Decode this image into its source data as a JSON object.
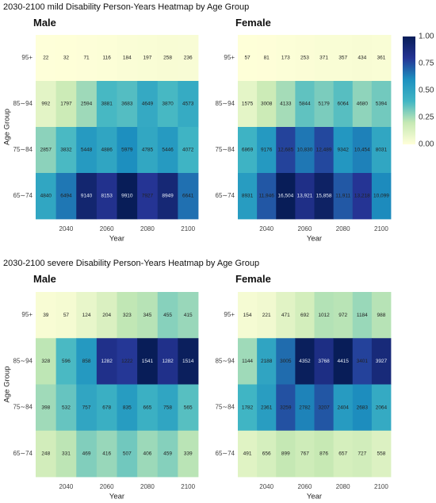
{
  "chart_data": [
    {
      "type": "heatmap",
      "title": "2030-2100 mild Disability Person-Years Heatmap by Age Group",
      "legend": {
        "placement": "right",
        "ticks": [
          "1.00",
          "0.75",
          "0.50",
          "0.25",
          "0.00"
        ],
        "colors": [
          "#ffffd9",
          "#c7e9b4",
          "#41b6c4",
          "#1d91c0",
          "#253494",
          "#081d58"
        ]
      },
      "panels": [
        {
          "title": "Male",
          "xlabel": "Year",
          "ylabel": "Age Group",
          "x_ticks": [
            "2040",
            "2060",
            "2080",
            "2100"
          ],
          "rows": [
            "95+",
            "85∼94",
            "75∼84",
            "65∼74"
          ],
          "cell_labels": [
            [
              "22",
              "32",
              "71",
              "116",
              "184",
              "197",
              "258",
              "236"
            ],
            [
              "992",
              "1797",
              "2594",
              "3881",
              "3683",
              "4649",
              "3870",
              "4573"
            ],
            [
              "2857",
              "3832",
              "5448",
              "4886",
              "5979",
              "4785",
              "5446",
              "4072"
            ],
            [
              "4840",
              "6494",
              "9140",
              "8153",
              "9910",
              "7927",
              "8949",
              "6641"
            ]
          ]
        },
        {
          "title": "Female",
          "xlabel": "Year",
          "ylabel": "",
          "x_ticks": [
            "2040",
            "2060",
            "2080",
            "2100"
          ],
          "rows": [
            "95+",
            "85∼94",
            "75∼84",
            "65∼74"
          ],
          "cell_labels": [
            [
              "57",
              "81",
              "173",
              "253",
              "371",
              "357",
              "434",
              "361"
            ],
            [
              "1575",
              "3008",
              "4133",
              "5844",
              "5179",
              "6064",
              "4680",
              "5394"
            ],
            [
              "6869",
              "9176",
              "12,685",
              "10,830",
              "12,489",
              "9342",
              "10,454",
              "8031"
            ],
            [
              "8931",
              "11,946",
              "16,504",
              "13,921",
              "15,858",
              "11,911",
              "13,218",
              "10,099"
            ]
          ]
        }
      ]
    },
    {
      "type": "heatmap",
      "title": "2030-2100 severe Disability Person-Years Heatmap by Age Group",
      "panels": [
        {
          "title": "Male",
          "xlabel": "Year",
          "ylabel": "Age Group",
          "x_ticks": [
            "2040",
            "2060",
            "2080",
            "2100"
          ],
          "rows": [
            "95+",
            "85∼94",
            "75∼84",
            "65∼74"
          ],
          "cell_labels": [
            [
              "39",
              "57",
              "124",
              "204",
              "323",
              "345",
              "455",
              "415"
            ],
            [
              "328",
              "596",
              "858",
              "1282",
              "1222",
              "1541",
              "1282",
              "1514"
            ],
            [
              "398",
              "532",
              "757",
              "678",
              "835",
              "665",
              "758",
              "565"
            ],
            [
              "248",
              "331",
              "469",
              "416",
              "507",
              "406",
              "459",
              "339"
            ]
          ]
        },
        {
          "title": "Female",
          "xlabel": "Year",
          "ylabel": "",
          "x_ticks": [
            "2040",
            "2060",
            "2080",
            "2100"
          ],
          "rows": [
            "95+",
            "85∼94",
            "75∼84",
            "65∼74"
          ],
          "cell_labels": [
            [
              "154",
              "221",
              "471",
              "692",
              "1012",
              "972",
              "1184",
              "988"
            ],
            [
              "1144",
              "2188",
              "3005",
              "4352",
              "3768",
              "4415",
              "3401",
              "3927"
            ],
            [
              "1782",
              "2361",
              "3259",
              "2782",
              "3207",
              "2404",
              "2683",
              "2064"
            ],
            [
              "491",
              "656",
              "899",
              "767",
              "876",
              "657",
              "727",
              "558"
            ]
          ]
        }
      ]
    }
  ]
}
